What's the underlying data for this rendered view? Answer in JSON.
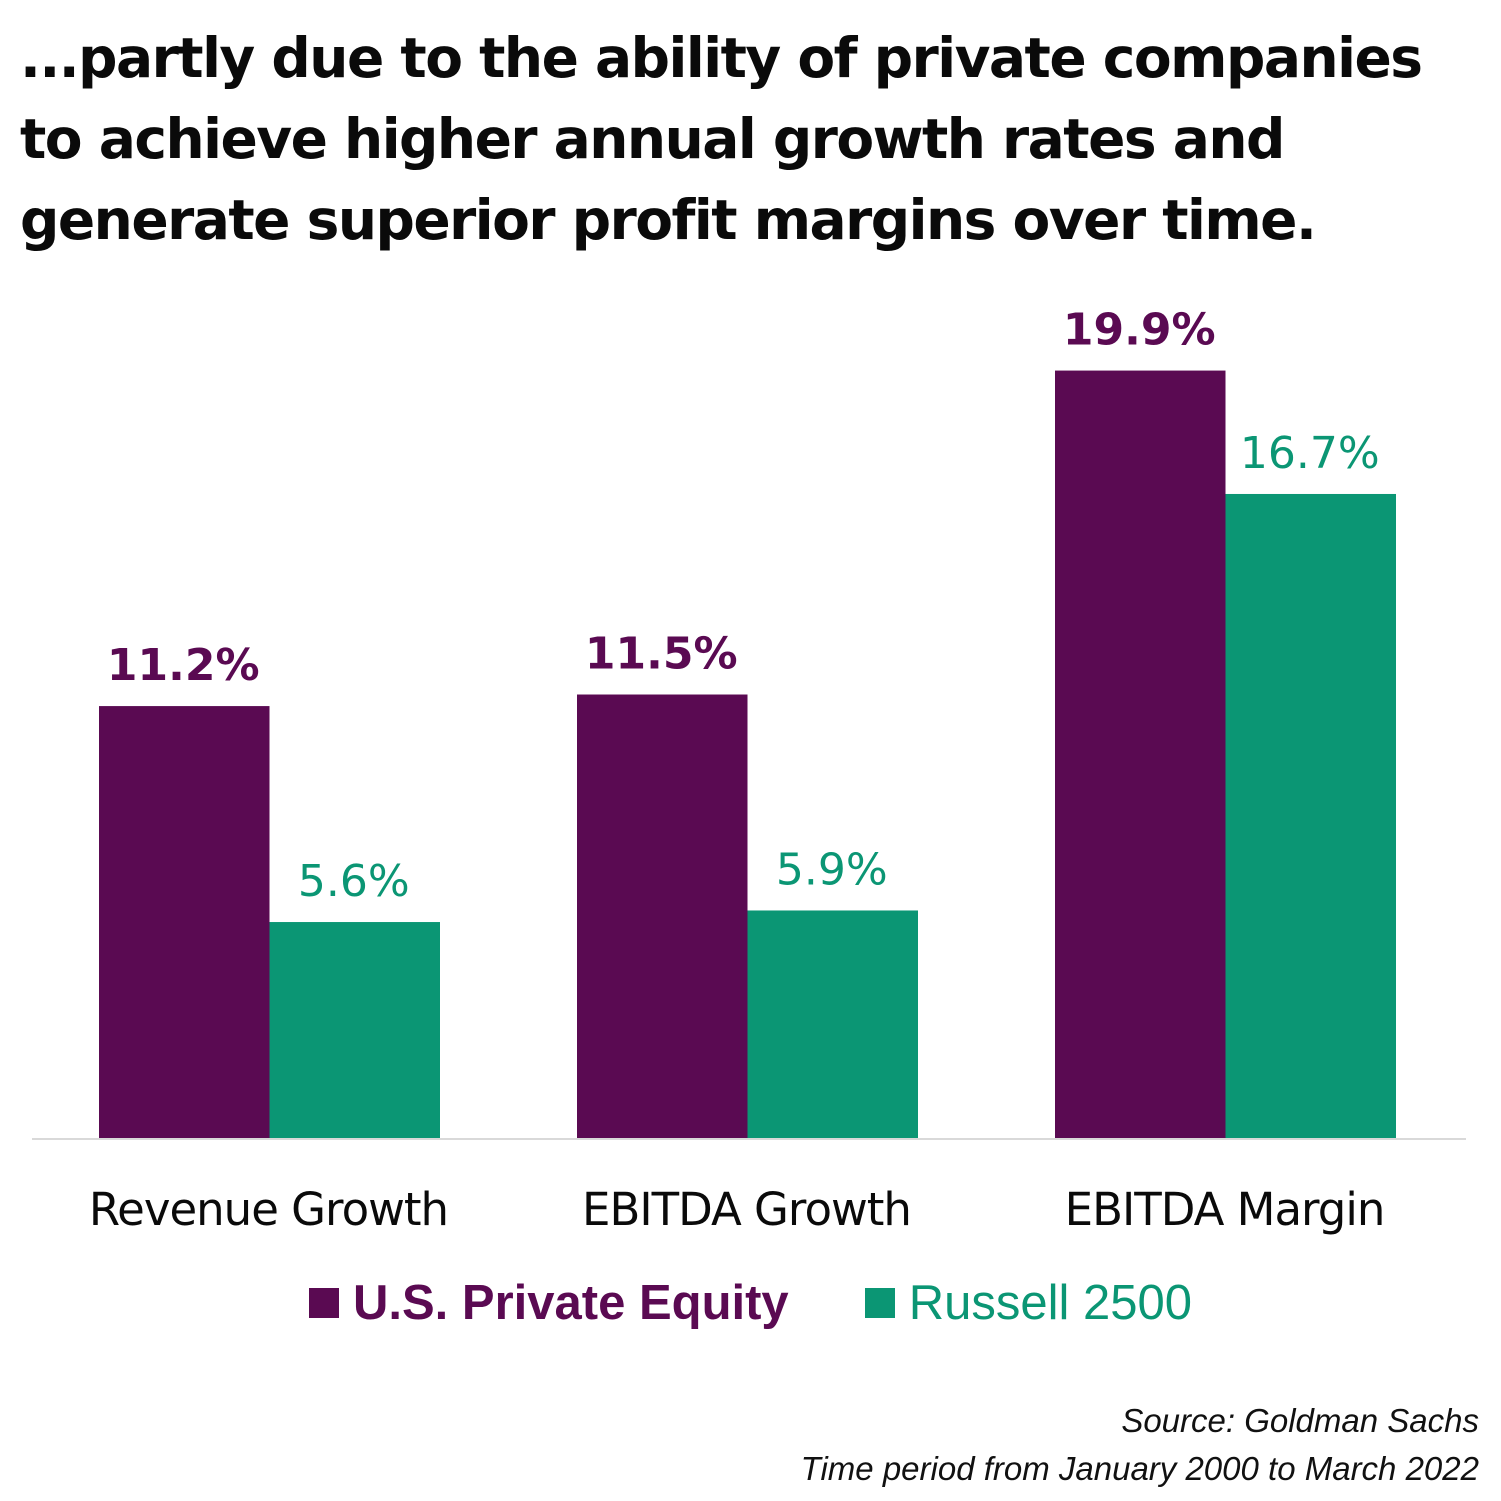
{
  "title": "...partly due to the ability of private companies to achieve higher annual growth rates and generate superior profit margins over time.",
  "colors": {
    "private_equity": "#5a0a52",
    "russell": "#0b9674",
    "axis_line": "#d9d9d9",
    "text": "#0a0a0a"
  },
  "chart_data": {
    "type": "bar",
    "title": "...partly due to the ability of private companies to achieve higher annual growth rates and generate superior profit margins over time.",
    "categories": [
      "Revenue Growth",
      "EBITDA Growth",
      "EBITDA Margin"
    ],
    "series": [
      {
        "name": "U.S. Private Equity",
        "values": [
          11.2,
          11.5,
          19.9
        ],
        "labels": [
          "11.2%",
          "11.5%",
          "19.9%"
        ],
        "color": "#5a0a52"
      },
      {
        "name": "Russell 2500",
        "values": [
          5.6,
          5.9,
          16.7
        ],
        "labels": [
          "5.6%",
          "5.9%",
          "16.7%"
        ],
        "color": "#0b9674"
      }
    ],
    "xlabel": "",
    "ylabel": "",
    "ylim": [
      0,
      20.2
    ],
    "grid": false,
    "y_axis_visible": false,
    "legend_position": "bottom-center",
    "unit": "%"
  },
  "legend": [
    {
      "label": "U.S. Private Equity"
    },
    {
      "label": "Russell 2500"
    }
  ],
  "footnotes": {
    "source": "Source: Goldman Sachs",
    "period": "Time period from January 2000 to March 2022"
  }
}
